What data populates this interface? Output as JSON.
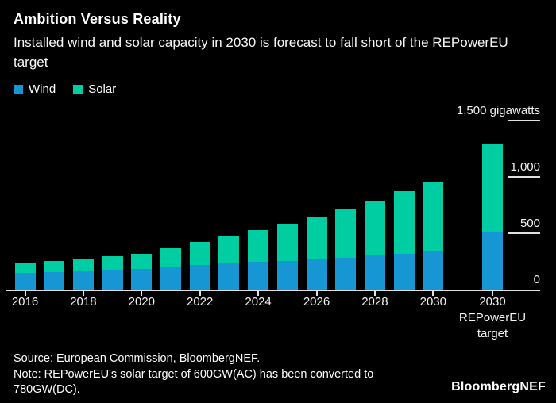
{
  "header": {
    "title": "Ambition Versus Reality",
    "subtitle": "Installed wind and solar capacity in 2030 is forecast to fall short of the REPowerEU target"
  },
  "legend": [
    {
      "label": "Wind",
      "color": "#1697d4"
    },
    {
      "label": "Solar",
      "color": "#01cda2"
    }
  ],
  "chart_data": {
    "type": "bar",
    "stacked": true,
    "unit": "gigawatts",
    "title": "Ambition Versus Reality",
    "subtitle": "Installed wind and solar capacity in 2030 is forecast to fall short of the REPowerEU target",
    "categories": [
      "2016",
      "2017",
      "2018",
      "2019",
      "2020",
      "2021",
      "2022",
      "2023",
      "2024",
      "2025",
      "2026",
      "2027",
      "2028",
      "2029",
      "2030",
      "2030 REPowerEU target"
    ],
    "series": [
      {
        "name": "Wind",
        "color": "#1697d4",
        "values": [
          145,
          157,
          167,
          178,
          185,
          195,
          216,
          230,
          244,
          252,
          267,
          280,
          302,
          319,
          344,
          510
        ]
      },
      {
        "name": "Solar",
        "color": "#01cda2",
        "values": [
          90,
          98,
          105,
          117,
          135,
          172,
          206,
          242,
          284,
          333,
          381,
          436,
          488,
          551,
          613,
          780
        ]
      }
    ],
    "x_tick_labels": [
      "2016",
      "2018",
      "2020",
      "2022",
      "2024",
      "2026",
      "2028",
      "2030"
    ],
    "target_label_lines": [
      "2030",
      "REPowerEU",
      "target"
    ],
    "y_axis": {
      "side": "right",
      "max": 1500,
      "labels": [
        {
          "value": 1500,
          "text": "1,500 gigawatts",
          "tick": true
        },
        {
          "value": 1000,
          "text": "1,000",
          "tick": true
        },
        {
          "value": 500,
          "text": "500",
          "tick": true
        },
        {
          "value": 0,
          "text": "0",
          "tick": false
        }
      ]
    },
    "grid": false,
    "legend_position": "top-left"
  },
  "footer": {
    "source": "Source: European Commission, BloombergNEF.",
    "note_line1": "Note: REPowerEU's solar target of 600GW(AC) has been converted to",
    "note_line2": "780GW(DC).",
    "brand": "BloombergNEF"
  },
  "colors": {
    "background": "#000000",
    "text": "#ffffff",
    "axis": "#e0e0e0",
    "wind": "#1697d4",
    "solar": "#01cda2"
  }
}
